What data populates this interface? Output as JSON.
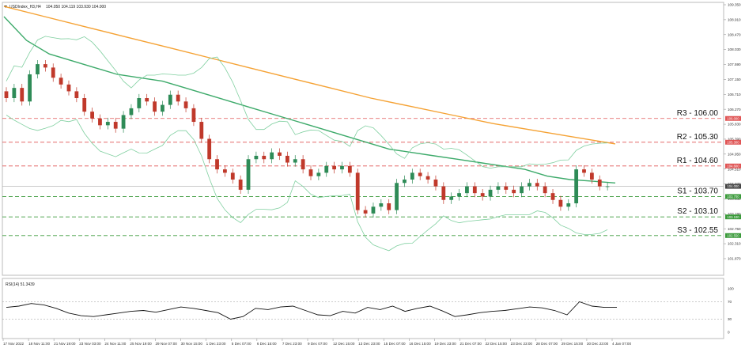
{
  "header": {
    "symbol_text": "USDIndex_H3,H4",
    "ohlc_text": "104.050 104.119 103.930 104.000",
    "indicator_text": "RSI(14) 51.3439"
  },
  "chart_data": {
    "type": "line",
    "title": "",
    "xlabel": "",
    "ylabel": "",
    "ylim": [
      101.45,
      109.35
    ],
    "grid": false,
    "y_ticks": [
      "109.350",
      "108.910",
      "108.470",
      "108.030",
      "107.590",
      "107.150",
      "106.710",
      "106.270",
      "105.830",
      "105.390",
      "104.950",
      "104.510",
      "104.070",
      "103.630",
      "103.190",
      "102.750",
      "102.310",
      "101.870"
    ],
    "x_tick_labels": [
      "17 Nov 2022",
      "18 Nov 11:00",
      "21 Nov 19:00",
      "23 Nov 03:00",
      "24 Nov 11:00",
      "25 Nov 19:00",
      "29 Nov 07:00",
      "30 Nov 15:00",
      "1 Dec 23:00",
      "5 Dec 07:00",
      "6 Dec 15:00",
      "7 Dec 23:00",
      "9 Dec 07:00",
      "12 Dec 15:00",
      "13 Dec 23:00",
      "15 Dec 07:00",
      "16 Dec 15:00",
      "19 Dec 23:00",
      "21 Dec 07:00",
      "22 Dec 15:00",
      "23 Dec 23:00",
      "28 Dec 07:00",
      "29 Dec 15:00",
      "30 Dec 23:00",
      "4 Jan 07:00"
    ],
    "levels": [
      {
        "label": "R3 - 106.00",
        "value": 106.0,
        "badge": "106.000",
        "color": "#e05555"
      },
      {
        "label": "R2 - 105.30",
        "value": 105.3,
        "badge": "105.300",
        "color": "#e05555"
      },
      {
        "label": "R1 - 104.60",
        "value": 104.6,
        "badge": "104.600",
        "color": "#e05555"
      },
      {
        "label": "S1 - 103.70",
        "value": 103.7,
        "badge": "103.700",
        "color": "#3a9a3a"
      },
      {
        "label": "S2 - 103.10",
        "value": 103.1,
        "badge": "103.100",
        "color": "#3a9a3a"
      },
      {
        "label": "S3 - 102.55",
        "value": 102.55,
        "badge": "102.550",
        "color": "#3a9a3a"
      }
    ],
    "current_price": {
      "value": 104.0,
      "badge": "104.000"
    },
    "candles_close": [
      106.6,
      106.9,
      106.5,
      107.3,
      107.6,
      107.5,
      107.2,
      107.0,
      106.8,
      106.6,
      106.2,
      106.0,
      105.8,
      105.9,
      105.7,
      106.1,
      106.3,
      106.6,
      106.5,
      106.2,
      106.4,
      106.7,
      106.5,
      106.3,
      105.9,
      105.4,
      104.8,
      104.5,
      104.4,
      104.2,
      103.9,
      104.8,
      104.9,
      104.8,
      105.0,
      104.9,
      104.7,
      104.8,
      104.5,
      104.3,
      104.4,
      104.6,
      104.5,
      104.6,
      104.4,
      103.3,
      103.2,
      103.4,
      103.5,
      103.3,
      104.1,
      104.2,
      104.4,
      104.3,
      104.2,
      104.0,
      103.6,
      103.7,
      103.8,
      104.0,
      103.8,
      103.7,
      103.9,
      104.0,
      103.9,
      103.8,
      104.0,
      104.1,
      104.0,
      103.8,
      103.6,
      103.4,
      103.5,
      104.5,
      104.4,
      104.2,
      104.0,
      104.0
    ],
    "series": [
      {
        "name": "",
        "color": "#3daa6a",
        "values": [
          109.0,
          108.3,
          107.9,
          107.7,
          107.5,
          107.3,
          107.2,
          107.1,
          106.9,
          106.7,
          106.5,
          106.3,
          106.1,
          105.9,
          105.7,
          105.5,
          105.3,
          105.1,
          105.0,
          104.9,
          104.8,
          104.7,
          104.6,
          104.5,
          104.3,
          104.2,
          104.15,
          104.1
        ]
      },
      {
        "name": "",
        "color": "#f5a234",
        "values": [
          109.3,
          109.0,
          108.7,
          108.4,
          108.1,
          107.8,
          107.5,
          107.2,
          106.9,
          106.6,
          106.35,
          106.1,
          105.85,
          105.65,
          105.45,
          105.25
        ]
      }
    ],
    "rsi": {
      "levels": [
        70,
        30
      ],
      "tick_labels": [
        "100",
        "70",
        "30",
        "0"
      ],
      "values": [
        57,
        60,
        66,
        63,
        55,
        44,
        38,
        36,
        40,
        44,
        48,
        50,
        46,
        52,
        58,
        55,
        50,
        45,
        30,
        36,
        55,
        52,
        58,
        60,
        50,
        40,
        38,
        48,
        44,
        57,
        52,
        60,
        48,
        55,
        60,
        49,
        36,
        40,
        45,
        48,
        50,
        54,
        58,
        56,
        50,
        40,
        70,
        60,
        57,
        57
      ]
    }
  }
}
